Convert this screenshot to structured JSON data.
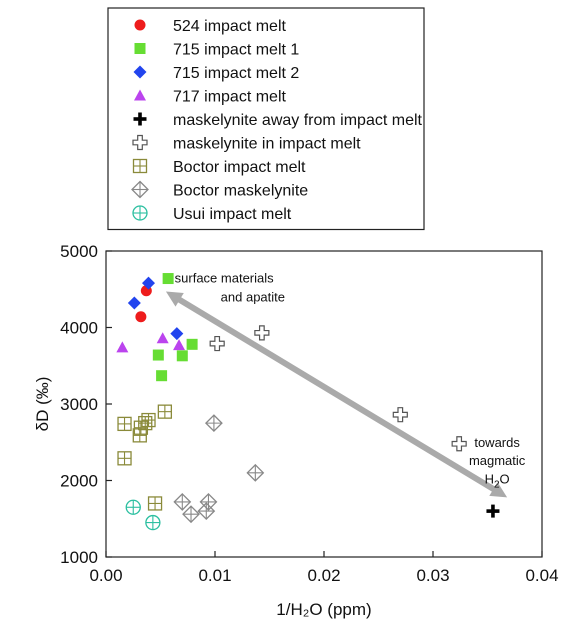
{
  "chart_data": {
    "type": "scatter",
    "xlabel": "1/H₂O (ppm)",
    "ylabel": "δD (‰)",
    "xlim": [
      0,
      0.04
    ],
    "ylim": [
      1000,
      5000
    ],
    "x_ticks": [
      "0.00",
      "0.01",
      "0.02",
      "0.03",
      "0.04"
    ],
    "y_ticks": [
      "1000",
      "2000",
      "3000",
      "4000",
      "5000"
    ],
    "grid": false,
    "legend_position": "top, outside plot",
    "series": [
      {
        "name": "524 impact melt",
        "marker": "circle",
        "color": "#ee1c1c",
        "points": [
          [
            0.0037,
            4480
          ],
          [
            0.0032,
            4140
          ]
        ]
      },
      {
        "name": "715 impact melt 1",
        "marker": "square",
        "color": "#66dd33",
        "points": [
          [
            0.0057,
            4640
          ],
          [
            0.0079,
            3780
          ],
          [
            0.0048,
            3640
          ],
          [
            0.007,
            3630
          ],
          [
            0.0051,
            3370
          ]
        ]
      },
      {
        "name": "715 impact melt 2",
        "marker": "diamond",
        "color": "#2244ee",
        "points": [
          [
            0.0039,
            4580
          ],
          [
            0.0026,
            4320
          ],
          [
            0.0065,
            3920
          ]
        ]
      },
      {
        "name": "717 impact melt",
        "marker": "triangle",
        "color": "#bb44ee",
        "points": [
          [
            0.0015,
            3740
          ],
          [
            0.0052,
            3860
          ],
          [
            0.0067,
            3770
          ]
        ]
      },
      {
        "name": "maskelynite away from impact melt",
        "marker": "plus-bold",
        "color": "#000000",
        "points": [
          [
            0.0355,
            1600
          ]
        ]
      },
      {
        "name": "maskelynite in impact melt",
        "marker": "plus-open",
        "color": "#555555",
        "points": [
          [
            0.0102,
            3790
          ],
          [
            0.0143,
            3930
          ],
          [
            0.027,
            2860
          ],
          [
            0.0324,
            2480
          ]
        ]
      },
      {
        "name": "Boctor impact melt",
        "marker": "square-cross",
        "color": "#8a8a3a",
        "points": [
          [
            0.0017,
            2740
          ],
          [
            0.0031,
            2590
          ],
          [
            0.0032,
            2690
          ],
          [
            0.0036,
            2750
          ],
          [
            0.0039,
            2790
          ],
          [
            0.0054,
            2900
          ],
          [
            0.0017,
            2290
          ],
          [
            0.0045,
            1700
          ]
        ]
      },
      {
        "name": "Boctor maskelynite",
        "marker": "diamond-cross",
        "color": "#888888",
        "points": [
          [
            0.0099,
            2750
          ],
          [
            0.0137,
            2100
          ],
          [
            0.007,
            1720
          ],
          [
            0.0078,
            1560
          ],
          [
            0.0092,
            1600
          ],
          [
            0.0094,
            1720
          ]
        ]
      },
      {
        "name": "Usui impact melt",
        "marker": "circle-cross",
        "color": "#2bbfa0",
        "points": [
          [
            0.0025,
            1650
          ],
          [
            0.0043,
            1450
          ]
        ]
      }
    ],
    "annotations": [
      {
        "text_lines": [
          "surface materials",
          "and apatite"
        ],
        "x": 0.0063,
        "y": 4640
      },
      {
        "text_lines": [
          "towards",
          "magmatic"
        ],
        "x": 0.0368,
        "y": 2440
      },
      {
        "text": "H",
        "subscript": "2",
        "suffix": "O",
        "x": 0.0368,
        "y": 1960
      }
    ],
    "arrow": {
      "from": [
        0.0055,
        4470
      ],
      "to": [
        0.0368,
        1780
      ],
      "double_headed": true,
      "color": "#aaaaaa"
    }
  }
}
